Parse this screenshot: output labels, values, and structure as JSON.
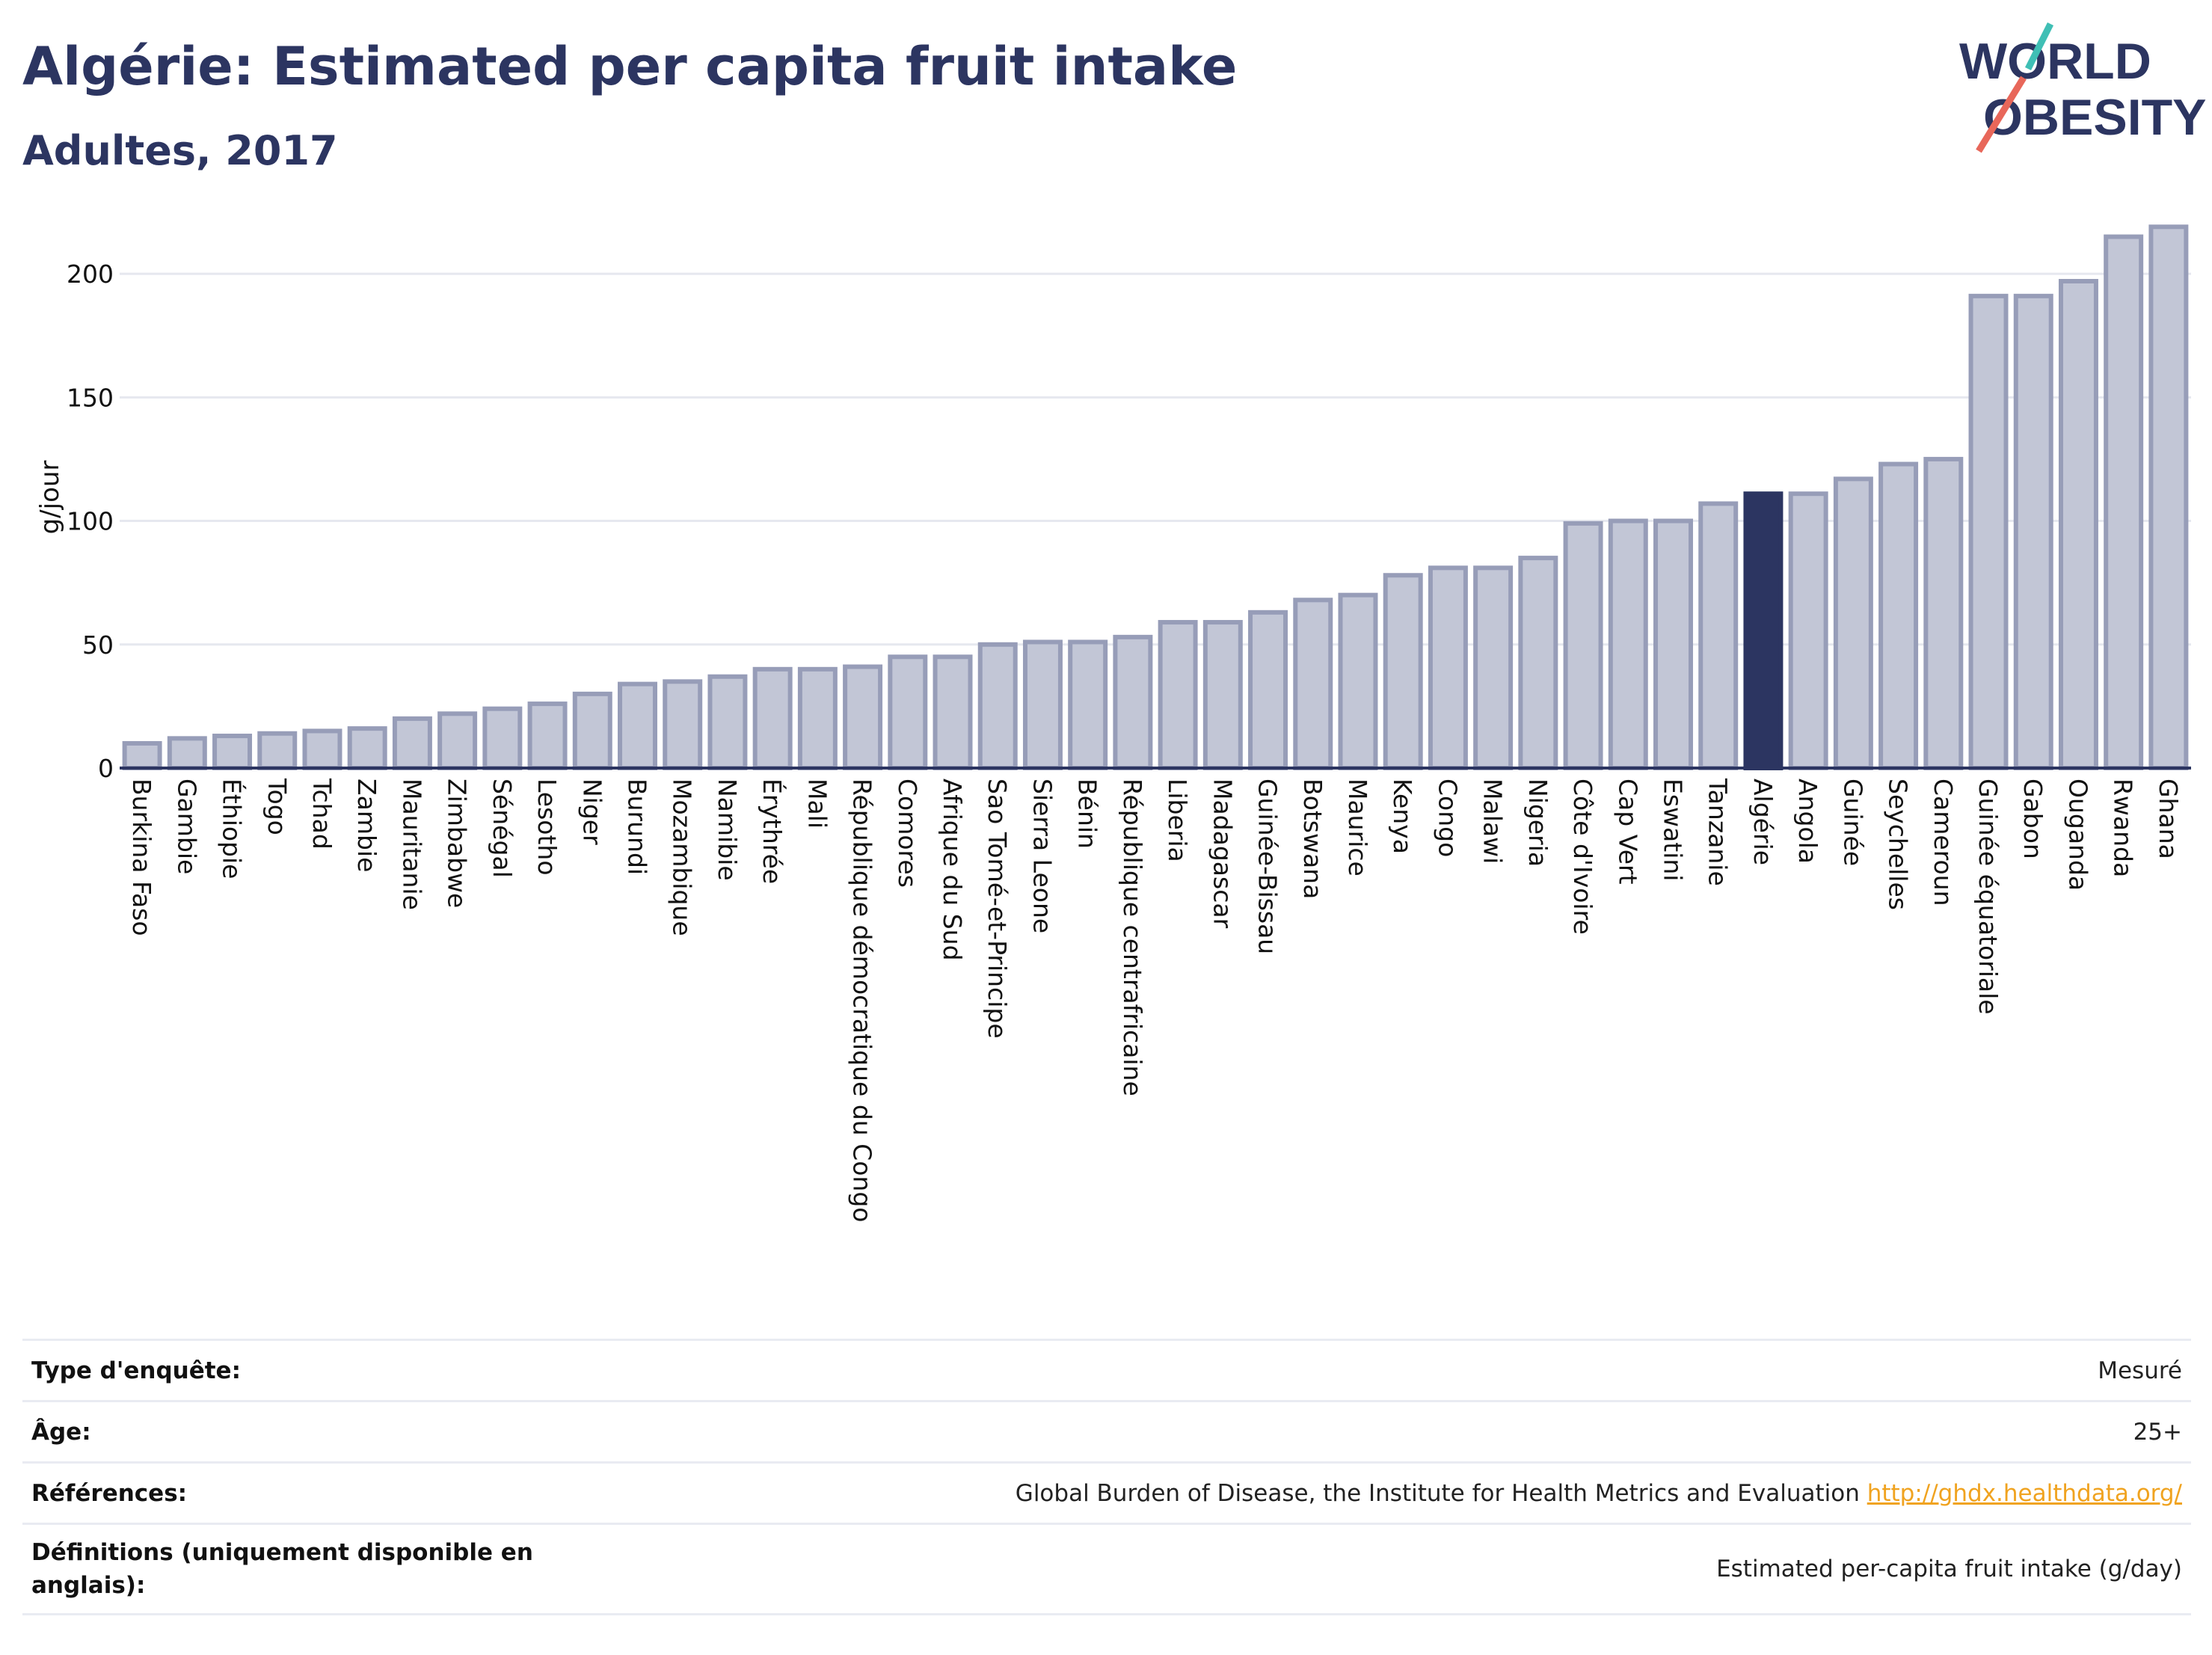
{
  "header": {
    "title": "Algérie: Estimated per capita fruit intake",
    "subtitle": "Adultes, 2017",
    "logo_line1": "WORLD",
    "logo_line2": "OBESITY"
  },
  "chart_data": {
    "type": "bar",
    "title": "Algérie: Estimated per capita fruit intake",
    "subtitle": "Adultes, 2017",
    "ylabel": "g/jour",
    "xlabel": "",
    "ylim": [
      0,
      220
    ],
    "yticks": [
      0,
      50,
      100,
      150,
      200
    ],
    "grid": true,
    "highlight": "Algérie",
    "colors": {
      "bar": "#c2c6d6",
      "bar_border": "#979db8",
      "highlight": "#2c3561",
      "axis": "#2c3561",
      "grid": "#e6e8ef"
    },
    "categories": [
      "Burkina Faso",
      "Gambie",
      "Éthiopie",
      "Togo",
      "Tchad",
      "Zambie",
      "Mauritanie",
      "Zimbabwe",
      "Sénégal",
      "Lesotho",
      "Niger",
      "Burundi",
      "Mozambique",
      "Namibie",
      "Érythrée",
      "Mali",
      "République démocratique du Congo",
      "Comores",
      "Afrique du Sud",
      "Sao Tomé-et-Principe",
      "Sierra Leone",
      "Bénin",
      "République centrafricaine",
      "Liberia",
      "Madagascar",
      "Guinée-Bissau",
      "Botswana",
      "Maurice",
      "Kenya",
      "Congo",
      "Malawi",
      "Nigeria",
      "Côte d'Ivoire",
      "Cap Vert",
      "Eswatini",
      "Tanzanie",
      "Algérie",
      "Angola",
      "Guinée",
      "Seychelles",
      "Cameroun",
      "Guinée équatoriale",
      "Gabon",
      "Ouganda",
      "Rwanda",
      "Ghana"
    ],
    "values": [
      10,
      12,
      13,
      14,
      15,
      16,
      20,
      22,
      24,
      26,
      30,
      34,
      35,
      37,
      40,
      40,
      41,
      45,
      45,
      50,
      51,
      51,
      53,
      59,
      59,
      63,
      68,
      70,
      78,
      81,
      81,
      85,
      99,
      100,
      100,
      107,
      111,
      111,
      117,
      123,
      125,
      191,
      191,
      197,
      215,
      219
    ]
  },
  "info": [
    {
      "label": "Type d'enquête:",
      "value": "Mesuré"
    },
    {
      "label": "Âge:",
      "value": "25+"
    },
    {
      "label": "Références:",
      "value": "Global Burden of Disease, the Institute for Health Metrics and Evaluation",
      "link": "http://ghdx.healthdata.org/"
    },
    {
      "label": "Définitions (uniquement disponible en anglais):",
      "value": "Estimated per-capita fruit intake (g/day)"
    }
  ]
}
